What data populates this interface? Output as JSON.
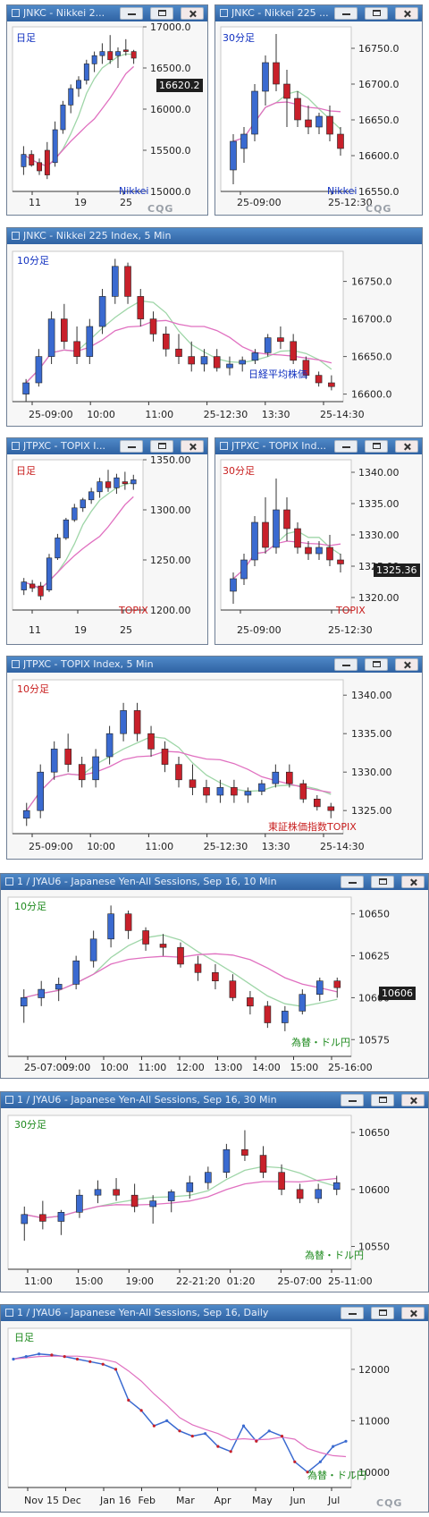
{
  "windows": [
    {
      "id": "w1",
      "title": "JNKC - Nikkei 2...",
      "period": "日足",
      "name": "Nikkei",
      "price_tag": "16620.2",
      "cqg": "CQG"
    },
    {
      "id": "w2",
      "title": "JNKC - Nikkei 225 ...",
      "period": "30分足",
      "name": "Nikkei",
      "cqg": "CQG"
    },
    {
      "id": "w3",
      "title": "JNKC - Nikkei 225 Index, 5 Min",
      "period": "10分足",
      "name": "日経平均株価"
    },
    {
      "id": "w4",
      "title": "JTPXC - TOPIX I...",
      "period": "日足",
      "name": "TOPIX"
    },
    {
      "id": "w5",
      "title": "JTPXC - TOPIX Ind...",
      "period": "30分足",
      "name": "TOPIX",
      "price_tag": "1325.36"
    },
    {
      "id": "w6",
      "title": "JTPXC - TOPIX Index, 5 Min",
      "period": "10分足",
      "name": "東証株価指数TOPIX"
    },
    {
      "id": "w7",
      "title": "1 / JYAU6 - Japanese Yen-All Sessions, Sep 16, 10 Min",
      "period": "10分足",
      "name": "為替・ドル円",
      "price_tag": "10606"
    },
    {
      "id": "w8",
      "title": "1 / JYAU6 - Japanese Yen-All Sessions, Sep 16, 30 Min",
      "period": "30分足",
      "name": "為替・ドル円"
    },
    {
      "id": "w9",
      "title": "1 / JYAU6 - Japanese Yen-All Sessions, Sep 16, Daily",
      "period": "日足",
      "name": "為替・ドル円",
      "cqg": "CQG"
    }
  ],
  "colors": {
    "up": "#3a6ad0",
    "down": "#c8202a",
    "ma_short": "#9fd6a8",
    "ma_long": "#e070c0",
    "ma_year": "#d21e1e",
    "band": "#8fd0f4"
  },
  "chart_data": [
    {
      "type": "candlestick",
      "window": "w1",
      "title": "",
      "ylim": [
        15000,
        17000
      ],
      "yticks": [
        "17000.0",
        "16500.0",
        "16000.0",
        "15500.0",
        "15000.0"
      ],
      "xticks": [
        "11",
        "19",
        "25"
      ],
      "ohlc": [
        [
          15300,
          15550,
          15200,
          15450
        ],
        [
          15450,
          15500,
          15300,
          15320
        ],
        [
          15350,
          15400,
          15200,
          15250
        ],
        [
          15500,
          15600,
          15150,
          15200
        ],
        [
          15350,
          15850,
          15300,
          15750
        ],
        [
          15750,
          16100,
          15700,
          16050
        ],
        [
          16050,
          16300,
          15950,
          16250
        ],
        [
          16250,
          16400,
          16150,
          16350
        ],
        [
          16350,
          16600,
          16300,
          16550
        ],
        [
          16550,
          16700,
          16450,
          16650
        ],
        [
          16650,
          16800,
          16550,
          16700
        ],
        [
          16700,
          16900,
          16550,
          16600
        ],
        [
          16650,
          16750,
          16500,
          16700
        ],
        [
          16720,
          16850,
          16650,
          16700
        ],
        [
          16700,
          16720,
          16550,
          16620
        ]
      ]
    },
    {
      "type": "candlestick",
      "window": "w2",
      "title": "",
      "ylim": [
        16550,
        16780
      ],
      "yticks": [
        "16750.0",
        "16700.0",
        "16650.0",
        "16600.0",
        "16550.0"
      ],
      "xticks": [
        "25-09:00",
        "25-12:30"
      ],
      "ohlc": [
        [
          16580,
          16630,
          16560,
          16620
        ],
        [
          16610,
          16640,
          16590,
          16630
        ],
        [
          16630,
          16700,
          16620,
          16690
        ],
        [
          16690,
          16740,
          16670,
          16730
        ],
        [
          16730,
          16770,
          16690,
          16700
        ],
        [
          16700,
          16720,
          16640,
          16680
        ],
        [
          16680,
          16690,
          16640,
          16650
        ],
        [
          16650,
          16670,
          16630,
          16640
        ],
        [
          16640,
          16660,
          16630,
          16655
        ],
        [
          16655,
          16670,
          16620,
          16630
        ],
        [
          16630,
          16640,
          16600,
          16610
        ]
      ]
    },
    {
      "type": "candlestick",
      "window": "w3",
      "title": "",
      "ylim": [
        16590,
        16790
      ],
      "yticks": [
        "16750.0",
        "16700.0",
        "16650.0",
        "16600.0"
      ],
      "xticks": [
        "25-09:00",
        "10:00",
        "11:00",
        "25-12:30",
        "13:30",
        "25-14:30"
      ],
      "ohlc": [
        [
          16600,
          16620,
          16590,
          16615
        ],
        [
          16615,
          16660,
          16610,
          16650
        ],
        [
          16650,
          16710,
          16640,
          16700
        ],
        [
          16700,
          16720,
          16660,
          16670
        ],
        [
          16670,
          16690,
          16640,
          16650
        ],
        [
          16650,
          16700,
          16640,
          16690
        ],
        [
          16690,
          16740,
          16680,
          16730
        ],
        [
          16730,
          16780,
          16720,
          16770
        ],
        [
          16770,
          16775,
          16720,
          16730
        ],
        [
          16730,
          16740,
          16690,
          16700
        ],
        [
          16700,
          16710,
          16670,
          16680
        ],
        [
          16680,
          16690,
          16650,
          16660
        ],
        [
          16660,
          16680,
          16640,
          16650
        ],
        [
          16650,
          16670,
          16630,
          16640
        ],
        [
          16640,
          16660,
          16630,
          16650
        ],
        [
          16650,
          16660,
          16630,
          16635
        ],
        [
          16635,
          16650,
          16625,
          16640
        ],
        [
          16640,
          16650,
          16630,
          16645
        ],
        [
          16645,
          16660,
          16640,
          16655
        ],
        [
          16655,
          16680,
          16650,
          16675
        ],
        [
          16675,
          16690,
          16660,
          16670
        ],
        [
          16670,
          16680,
          16640,
          16645
        ],
        [
          16645,
          16650,
          16620,
          16625
        ],
        [
          16625,
          16630,
          16610,
          16615
        ],
        [
          16615,
          16625,
          16605,
          16610
        ]
      ]
    },
    {
      "type": "candlestick",
      "window": "w4",
      "title": "",
      "ylim": [
        1200,
        1350
      ],
      "yticks": [
        "1350.00",
        "1300.00",
        "1250.00",
        "1200.00"
      ],
      "xticks": [
        "11",
        "19",
        "25"
      ],
      "ohlc": [
        [
          1220,
          1232,
          1215,
          1228
        ],
        [
          1226,
          1230,
          1218,
          1222
        ],
        [
          1224,
          1228,
          1210,
          1214
        ],
        [
          1220,
          1256,
          1218,
          1252
        ],
        [
          1252,
          1276,
          1250,
          1272
        ],
        [
          1272,
          1292,
          1270,
          1290
        ],
        [
          1290,
          1306,
          1288,
          1302
        ],
        [
          1302,
          1312,
          1298,
          1310
        ],
        [
          1310,
          1322,
          1306,
          1318
        ],
        [
          1318,
          1332,
          1312,
          1328
        ],
        [
          1328,
          1340,
          1318,
          1322
        ],
        [
          1322,
          1336,
          1316,
          1332
        ],
        [
          1328,
          1338,
          1320,
          1326
        ],
        [
          1326,
          1335,
          1320,
          1330
        ]
      ]
    },
    {
      "type": "candlestick",
      "window": "w5",
      "title": "",
      "ylim": [
        1318,
        1342
      ],
      "yticks": [
        "1340.00",
        "1335.00",
        "1330.00",
        "1325.00",
        "1320.00"
      ],
      "xticks": [
        "25-09:00",
        "25-12:30"
      ],
      "ohlc": [
        [
          1321,
          1324,
          1319,
          1323
        ],
        [
          1323,
          1327,
          1322,
          1326
        ],
        [
          1326,
          1333,
          1325,
          1332
        ],
        [
          1332,
          1336,
          1327,
          1328
        ],
        [
          1328,
          1339,
          1327,
          1334
        ],
        [
          1334,
          1336,
          1329,
          1331
        ],
        [
          1331,
          1332,
          1327,
          1328
        ],
        [
          1328,
          1329,
          1326,
          1327
        ],
        [
          1327,
          1329,
          1326,
          1328
        ],
        [
          1328,
          1330,
          1325,
          1326
        ],
        [
          1326,
          1327,
          1324,
          1325.36
        ]
      ]
    },
    {
      "type": "candlestick",
      "window": "w6",
      "title": "",
      "ylim": [
        1322,
        1342
      ],
      "yticks": [
        "1340.00",
        "1335.00",
        "1330.00",
        "1325.00"
      ],
      "xticks": [
        "25-09:00",
        "10:00",
        "11:00",
        "25-12:30",
        "13:30",
        "25-14:30"
      ],
      "ohlc": [
        [
          1324,
          1326,
          1323,
          1325
        ],
        [
          1325,
          1331,
          1324,
          1330
        ],
        [
          1330,
          1334,
          1329,
          1333
        ],
        [
          1333,
          1335,
          1330,
          1331
        ],
        [
          1331,
          1332,
          1328,
          1329
        ],
        [
          1329,
          1333,
          1328,
          1332
        ],
        [
          1332,
          1336,
          1331,
          1335
        ],
        [
          1335,
          1339,
          1334,
          1338
        ],
        [
          1338,
          1339,
          1334,
          1335
        ],
        [
          1335,
          1336,
          1332,
          1333
        ],
        [
          1333,
          1334,
          1330,
          1331
        ],
        [
          1331,
          1332,
          1328,
          1329
        ],
        [
          1329,
          1331,
          1327,
          1328
        ],
        [
          1328,
          1329,
          1326,
          1327
        ],
        [
          1327,
          1329,
          1326,
          1328
        ],
        [
          1328,
          1329,
          1326,
          1327
        ],
        [
          1327,
          1328,
          1326,
          1327.5
        ],
        [
          1327.5,
          1329,
          1327,
          1328.5
        ],
        [
          1328.5,
          1331,
          1328,
          1330
        ],
        [
          1330,
          1331,
          1328,
          1328.5
        ],
        [
          1328.5,
          1329,
          1326,
          1326.5
        ],
        [
          1326.5,
          1327,
          1325,
          1325.5
        ],
        [
          1325.5,
          1326,
          1324,
          1325
        ]
      ]
    },
    {
      "type": "candlestick",
      "window": "w7",
      "title": "",
      "ylim": [
        10565,
        10660
      ],
      "yticks": [
        "10650",
        "10625",
        "10600",
        "10575"
      ],
      "xticks": [
        "25-07:00",
        "09:00",
        "10:00",
        "11:00",
        "12:00",
        "13:00",
        "14:00",
        "15:00",
        "25-16:00"
      ],
      "ohlc": [
        [
          10595,
          10605,
          10585,
          10600
        ],
        [
          10600,
          10610,
          10595,
          10605
        ],
        [
          10605,
          10612,
          10598,
          10608
        ],
        [
          10608,
          10625,
          10605,
          10622
        ],
        [
          10622,
          10640,
          10618,
          10635
        ],
        [
          10635,
          10655,
          10630,
          10650
        ],
        [
          10650,
          10652,
          10635,
          10640
        ],
        [
          10640,
          10642,
          10628,
          10632
        ],
        [
          10632,
          10638,
          10625,
          10630
        ],
        [
          10630,
          10633,
          10618,
          10620
        ],
        [
          10620,
          10625,
          10610,
          10615
        ],
        [
          10615,
          10620,
          10605,
          10610
        ],
        [
          10610,
          10614,
          10598,
          10600
        ],
        [
          10600,
          10604,
          10590,
          10595
        ],
        [
          10595,
          10598,
          10582,
          10585
        ],
        [
          10585,
          10595,
          10580,
          10592
        ],
        [
          10592,
          10605,
          10590,
          10602
        ],
        [
          10602,
          10612,
          10598,
          10610
        ],
        [
          10610,
          10612,
          10600,
          10606
        ]
      ]
    },
    {
      "type": "candlestick",
      "window": "w8",
      "title": "",
      "ylim": [
        10530,
        10665
      ],
      "yticks": [
        "10650",
        "10600",
        "10550"
      ],
      "xticks": [
        "11:00",
        "15:00",
        "19:00",
        "22-21:20",
        "01:20",
        "25-07:00",
        "25-11:00"
      ],
      "ohlc": [
        [
          10570,
          10585,
          10555,
          10578
        ],
        [
          10578,
          10590,
          10565,
          10572
        ],
        [
          10572,
          10582,
          10560,
          10580
        ],
        [
          10580,
          10600,
          10575,
          10595
        ],
        [
          10595,
          10608,
          10588,
          10600
        ],
        [
          10600,
          10610,
          10590,
          10595
        ],
        [
          10595,
          10605,
          10580,
          10585
        ],
        [
          10585,
          10595,
          10570,
          10590
        ],
        [
          10590,
          10600,
          10580,
          10598
        ],
        [
          10598,
          10612,
          10592,
          10606
        ],
        [
          10606,
          10620,
          10600,
          10615
        ],
        [
          10615,
          10640,
          10610,
          10635
        ],
        [
          10635,
          10652,
          10625,
          10630
        ],
        [
          10630,
          10638,
          10610,
          10615
        ],
        [
          10615,
          10622,
          10595,
          10600
        ],
        [
          10600,
          10605,
          10588,
          10592
        ],
        [
          10592,
          10605,
          10588,
          10600
        ],
        [
          10600,
          10612,
          10595,
          10606
        ]
      ]
    },
    {
      "type": "line",
      "window": "w9",
      "title": "",
      "ylim": [
        9700,
        12800
      ],
      "yticks": [
        "12000",
        "11000",
        "10000"
      ],
      "xticks": [
        "Nov 15",
        "Dec",
        "Jan 16",
        "Feb",
        "Mar",
        "Apr",
        "May",
        "Jun",
        "Jul"
      ],
      "series": [
        {
          "values": [
            12200,
            12250,
            12300,
            12280,
            12250,
            12200,
            12150,
            12100,
            12000,
            11400,
            11200,
            10900,
            11000,
            10800,
            10700,
            10750,
            10500,
            10400,
            10900,
            10600,
            10800,
            10700,
            10200,
            10000,
            10200,
            10500,
            10600
          ]
        }
      ]
    }
  ]
}
